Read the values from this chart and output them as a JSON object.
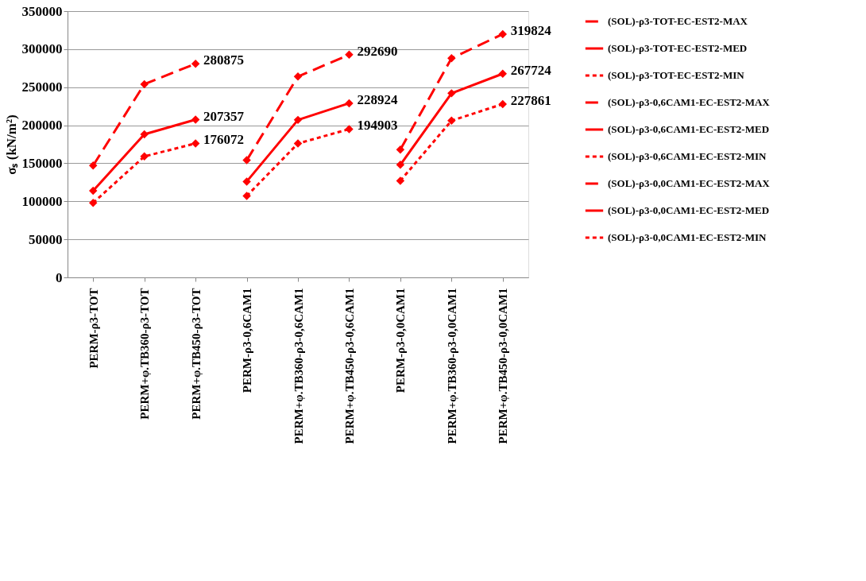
{
  "chart_data": {
    "type": "line",
    "ylabel": "σₛ (kN/m²)",
    "categories": [
      "PERM-ρ3-TOT",
      "PERM+φ.TB360-ρ3-TOT",
      "PERM+φ.TB450-ρ3-TOT",
      "PERM-ρ3-0,6CAM1",
      "PERM+φ.TB360-ρ3-0,6CAM1",
      "PERM+φ.TB450-ρ3-0,6CAM1",
      "PERM-ρ3-0,0CAM1",
      "PERM+φ.TB360-ρ3-0,0CAM1",
      "PERM+φ.TB450-ρ3-0,0CAM1"
    ],
    "series": [
      {
        "name": "(SOL)-ρ3-TOT-EC-EST2-MAX",
        "color": "#ff0000",
        "line_style": "dashed",
        "values": [
          147000,
          254000,
          280875,
          null,
          null,
          null,
          null,
          null,
          null
        ],
        "value_labels": [
          null,
          null,
          "280875",
          null,
          null,
          null,
          null,
          null,
          null
        ]
      },
      {
        "name": "(SOL)-ρ3-TOT-EC-EST2-MED",
        "color": "#ff0000",
        "line_style": "solid",
        "values": [
          114000,
          188000,
          207357,
          null,
          null,
          null,
          null,
          null,
          null
        ],
        "value_labels": [
          null,
          null,
          "207357",
          null,
          null,
          null,
          null,
          null,
          null
        ]
      },
      {
        "name": "(SOL)-ρ3-TOT-EC-EST2-MIN",
        "color": "#ff0000",
        "line_style": "dotted",
        "values": [
          98000,
          159000,
          176072,
          null,
          null,
          null,
          null,
          null,
          null
        ],
        "value_labels": [
          null,
          null,
          "176072",
          null,
          null,
          null,
          null,
          null,
          null
        ]
      },
      {
        "name": "(SOL)-ρ3-0,6CAM1-EC-EST2-MAX",
        "color": "#ff0000",
        "line_style": "dashed",
        "values": [
          null,
          null,
          null,
          154000,
          264000,
          292690,
          null,
          null,
          null
        ],
        "value_labels": [
          null,
          null,
          null,
          null,
          null,
          "292690",
          null,
          null,
          null
        ]
      },
      {
        "name": "(SOL)-ρ3-0,6CAM1-EC-EST2-MED",
        "color": "#ff0000",
        "line_style": "solid",
        "values": [
          null,
          null,
          null,
          126000,
          207000,
          228924,
          null,
          null,
          null
        ],
        "value_labels": [
          null,
          null,
          null,
          null,
          null,
          "228924",
          null,
          null,
          null
        ]
      },
      {
        "name": "(SOL)-ρ3-0,6CAM1-EC-EST2-MIN",
        "color": "#ff0000",
        "line_style": "dotted",
        "values": [
          null,
          null,
          null,
          107000,
          176000,
          194903,
          null,
          null,
          null
        ],
        "value_labels": [
          null,
          null,
          null,
          null,
          null,
          "194903",
          null,
          null,
          null
        ]
      },
      {
        "name": "(SOL)-ρ3-0,0CAM1-EC-EST2-MAX",
        "color": "#ff0000",
        "line_style": "dashed",
        "values": [
          null,
          null,
          null,
          null,
          null,
          null,
          168000,
          288000,
          319824
        ],
        "value_labels": [
          null,
          null,
          null,
          null,
          null,
          null,
          null,
          null,
          "319824"
        ]
      },
      {
        "name": "(SOL)-ρ3-0,0CAM1-EC-EST2-MED",
        "color": "#ff0000",
        "line_style": "solid",
        "values": [
          null,
          null,
          null,
          null,
          null,
          null,
          148000,
          242000,
          267724
        ],
        "value_labels": [
          null,
          null,
          null,
          null,
          null,
          null,
          null,
          null,
          "267724"
        ]
      },
      {
        "name": "(SOL)-ρ3-0,0CAM1-EC-EST2-MIN",
        "color": "#ff0000",
        "line_style": "dotted",
        "values": [
          null,
          null,
          null,
          null,
          null,
          null,
          127000,
          206000,
          227861
        ],
        "value_labels": [
          null,
          null,
          null,
          null,
          null,
          null,
          null,
          null,
          "227861"
        ]
      }
    ],
    "ylim": [
      0,
      350000
    ],
    "yticks": [
      0,
      50000,
      100000,
      150000,
      200000,
      250000,
      300000,
      350000
    ],
    "grid": "y",
    "legend": "right",
    "marker": "diamond"
  }
}
